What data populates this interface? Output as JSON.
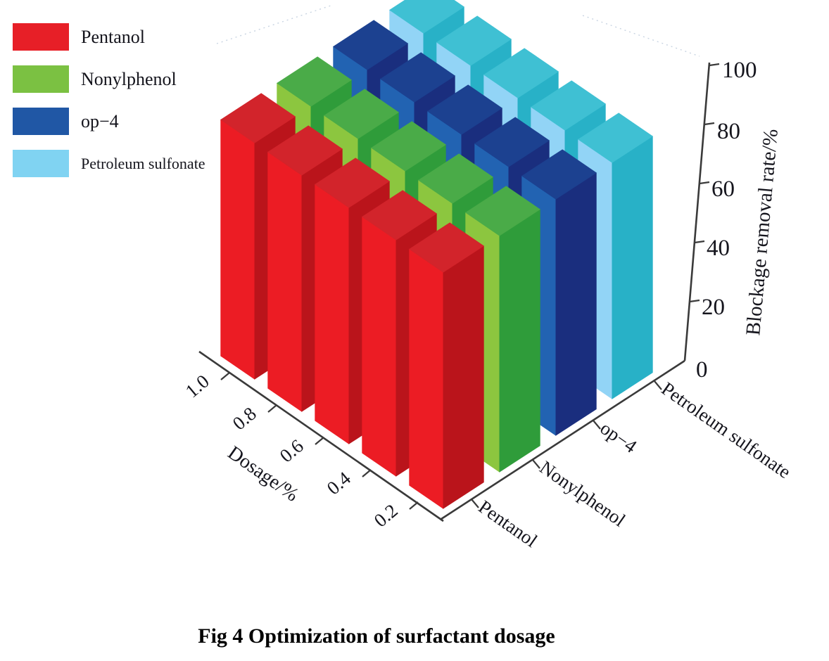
{
  "figure": {
    "caption": "Fig 4 Optimization of surfactant dosage"
  },
  "chart_data": {
    "type": "bar",
    "subtype": "3d-grouped-columns",
    "title": "Fig 4 Optimization of surfactant dosage",
    "x_axis": {
      "label": "Dosage/%",
      "ticks": [
        "1.0",
        "0.8",
        "0.6",
        "0.4",
        "0.2"
      ]
    },
    "depth_axis": {
      "label": "",
      "ticks": [
        "Pentanol",
        "Nonylphenol",
        "op−4",
        "Petroleum sulfonate"
      ]
    },
    "z_axis": {
      "label": "Blockage removal rate/%",
      "ticks": [
        "0",
        "20",
        "40",
        "60",
        "80",
        "100"
      ],
      "range": [
        0,
        100
      ],
      "grid": false
    },
    "dosages": [
      0.2,
      0.4,
      0.6,
      0.8,
      1.0
    ],
    "series": [
      {
        "name": "Pentanol",
        "values": [
          80,
          80,
          80,
          80,
          80
        ],
        "legend_color": "#e71f27",
        "faces": {
          "light": "#ec1c24",
          "dark": "#ba141b",
          "top": "#d2242b"
        }
      },
      {
        "name": "Nonylphenol",
        "values": [
          80,
          80,
          80,
          80,
          80
        ],
        "legend_color": "#7bc142",
        "faces": {
          "light": "#8cc63f",
          "dark": "#2f9c3a",
          "top": "#4aab48"
        }
      },
      {
        "name": "op−4",
        "values": [
          80,
          80,
          80,
          80,
          80
        ],
        "legend_color": "#2057a5",
        "faces": {
          "light": "#2263b2",
          "dark": "#1a2e7e",
          "top": "#1c4190"
        }
      },
      {
        "name": "Petroleum sulfonate",
        "values": [
          80,
          80,
          80,
          80,
          80
        ],
        "legend_color": "#80d3f2",
        "faces": {
          "light": "#92d4f6",
          "dark": "#28b1c7",
          "top": "#3fc0d3"
        }
      }
    ],
    "legend_position": "top-left"
  }
}
